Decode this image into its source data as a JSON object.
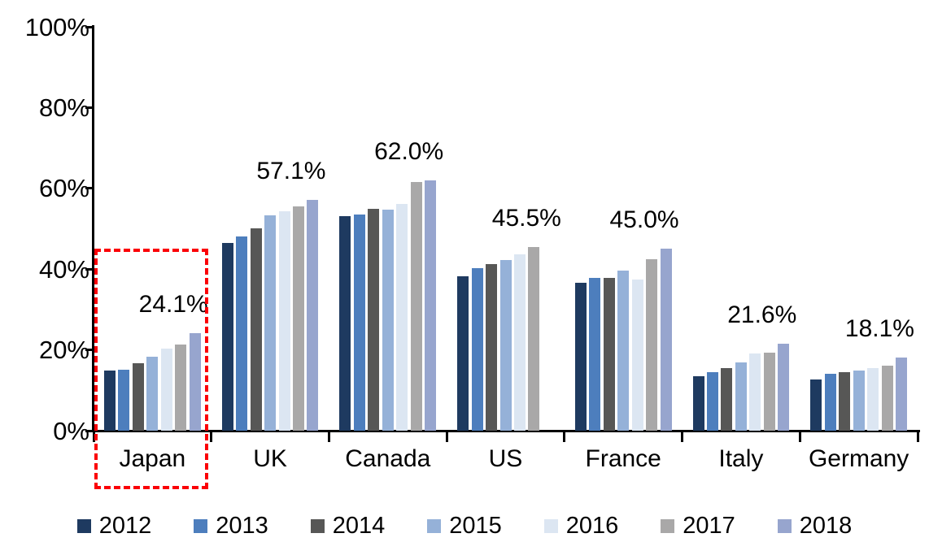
{
  "chart_data": {
    "type": "bar",
    "title": "",
    "xlabel": "",
    "ylabel": "",
    "ylim": [
      0,
      100
    ],
    "grid": false,
    "legend_position": "bottom",
    "categories": [
      "Japan",
      "UK",
      "Canada",
      "US",
      "France",
      "Italy",
      "Germany"
    ],
    "series": [
      {
        "name": "2012",
        "color": "#1e3a60",
        "values": [
          14.9,
          46.4,
          53.1,
          38.3,
          36.7,
          13.4,
          12.7
        ]
      },
      {
        "name": "2013",
        "color": "#4d7ebd",
        "values": [
          15.1,
          48.0,
          53.6,
          40.3,
          37.9,
          14.4,
          14.1
        ]
      },
      {
        "name": "2014",
        "color": "#575756",
        "values": [
          16.8,
          50.1,
          55.0,
          41.2,
          37.8,
          15.5,
          14.5
        ]
      },
      {
        "name": "2015",
        "color": "#95b1d8",
        "values": [
          18.4,
          53.4,
          54.7,
          42.3,
          39.6,
          17.0,
          14.9
        ]
      },
      {
        "name": "2016",
        "color": "#dce6f2",
        "values": [
          20.3,
          54.4,
          56.2,
          43.7,
          37.5,
          19.1,
          15.5
        ]
      },
      {
        "name": "2017",
        "color": "#a9a8a8",
        "values": [
          21.4,
          55.6,
          61.5,
          45.5,
          42.5,
          19.4,
          16.1
        ]
      },
      {
        "name": "2018",
        "color": "#97a5ce",
        "values": [
          24.1,
          57.1,
          62.0,
          null,
          45.0,
          21.6,
          18.1
        ]
      }
    ],
    "data_labels": [
      "24.1%",
      "57.1%",
      "62.0%",
      "45.5%",
      "45.0%",
      "21.6%",
      "18.1%"
    ],
    "ytick_values": [
      0,
      20,
      40,
      60,
      80,
      100
    ],
    "ytick_labels": [
      "0%",
      "20%",
      "40%",
      "60%",
      "80%",
      "100%"
    ],
    "highlight": {
      "category": "Japan",
      "style": "red-dashed-box",
      "color": "#fb0006"
    }
  }
}
